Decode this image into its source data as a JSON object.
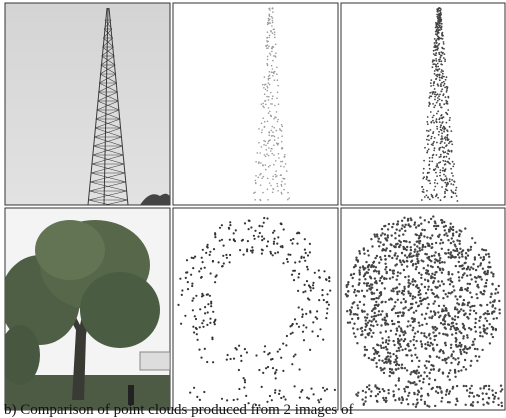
{
  "figure": {
    "caption": "b) Comparison of point clouds produced from 2 images of"
  }
}
